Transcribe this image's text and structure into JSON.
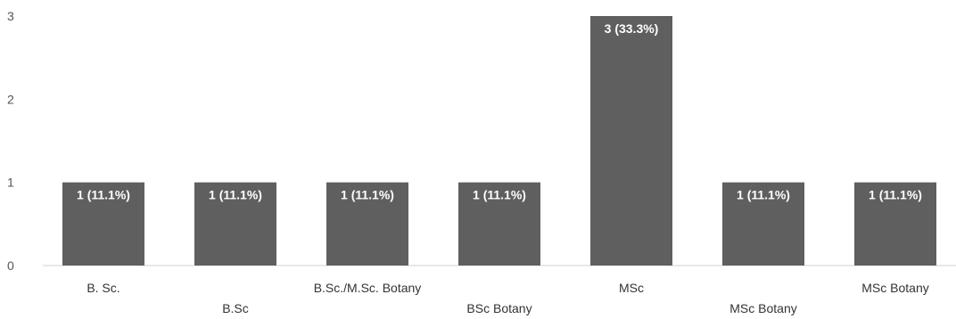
{
  "chart_data": {
    "type": "bar",
    "categories": [
      "B. Sc.",
      "B.Sc",
      "B.Sc./M.Sc. Botany",
      "BSc Botany",
      "MSc",
      "MSc Botany",
      "MSc Botany"
    ],
    "values": [
      1,
      1,
      1,
      1,
      3,
      1,
      1
    ],
    "data_labels": [
      "1 (11.1%)",
      "1 (11.1%)",
      "1 (11.1%)",
      "1 (11.1%)",
      "3 (33.3%)",
      "1 (11.1%)",
      "1 (11.1%)"
    ],
    "yticks": [
      0,
      1,
      2,
      3
    ],
    "ylim": [
      0,
      3
    ],
    "grid": false,
    "legend": "none",
    "bar_color": "#5f5f5f",
    "label_color": "#ffffff"
  }
}
